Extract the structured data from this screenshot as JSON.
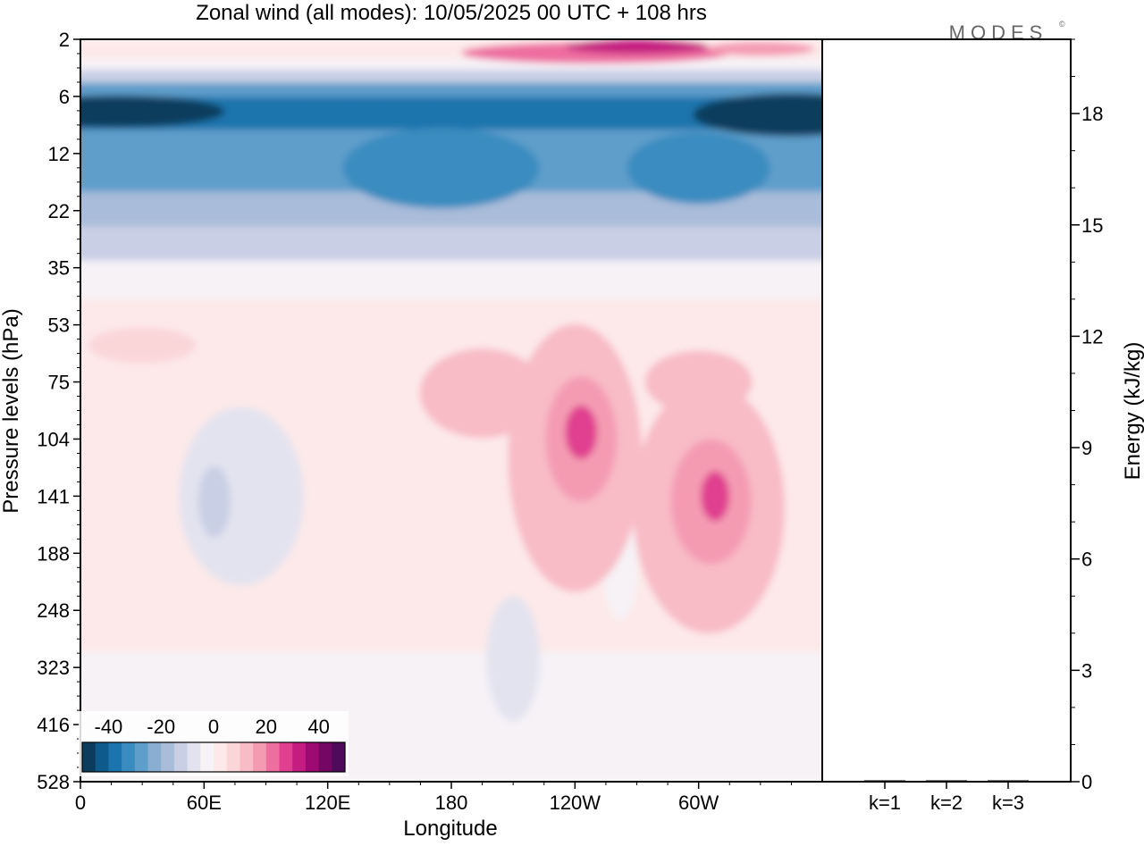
{
  "title": "Zonal wind (all modes):  10/05/2025  00 UTC  + 108 hrs",
  "brand": {
    "name": "MODES",
    "mark": "©"
  },
  "chart_data": [
    {
      "type": "heatmap",
      "title": "Zonal wind (all modes):  10/05/2025  00 UTC  + 108 hrs",
      "xlabel": "Longitude",
      "ylabel": "Pressure levels (hPa)",
      "x_tick_labels": [
        "0",
        "60E",
        "120E",
        "180",
        "120W",
        "60W"
      ],
      "x_tick_values_deg_east": [
        0,
        60,
        120,
        180,
        240,
        300
      ],
      "xlim": [
        0,
        360
      ],
      "y_tick_labels": [
        "2",
        "6",
        "12",
        "22",
        "35",
        "53",
        "75",
        "104",
        "141",
        "188",
        "248",
        "323",
        "416",
        "528"
      ],
      "y_levels_hPa": [
        2,
        6,
        12,
        22,
        35,
        53,
        75,
        104,
        141,
        188,
        248,
        323,
        416,
        528
      ],
      "colorbar": {
        "tick_labels": [
          "-40",
          "-20",
          "0",
          "20",
          "40"
        ],
        "range": [
          -50,
          50
        ],
        "colors": [
          "#0b3c5d",
          "#0e5a8a",
          "#1b74ad",
          "#3a8cc0",
          "#5e9ecb",
          "#88aed2",
          "#a9bcd9",
          "#c9cfe4",
          "#e3e3ef",
          "#f6f2f6",
          "#fde9e9",
          "#fbd6d9",
          "#f8bcc6",
          "#f49bb2",
          "#ee6ea0",
          "#e0408f",
          "#c41c80",
          "#9c0a72",
          "#740664",
          "#4f0a5c"
        ]
      },
      "field_description_ms": [
        {
          "name": "stratospheric easterly jet",
          "p_top": 5,
          "p_bottom": 22,
          "value_min": -50,
          "value_max": -20
        },
        {
          "name": "upper stratosphere westerlies",
          "p_top": 2,
          "p_bottom": 4,
          "lon_range": [
            180,
            330
          ],
          "value_max": 25
        },
        {
          "name": "jet core near 115W",
          "lon": 245,
          "p": 104,
          "value_max": 30
        },
        {
          "name": "jet core near 50W",
          "lon": 306,
          "p": 141,
          "value_max": 28
        },
        {
          "name": "easterly pocket near 75E",
          "lon": 75,
          "p": 141,
          "value_min": -10
        }
      ]
    },
    {
      "type": "bar",
      "categories": [
        "k=1",
        "k=2",
        "k=3"
      ],
      "values": [
        0.02,
        0.01,
        0.01
      ],
      "ylabel": "Energy (kJ/kg)",
      "ylim": [
        0,
        20
      ],
      "y_tick_labels": [
        "0",
        "3",
        "6",
        "9",
        "12",
        "15",
        "18"
      ],
      "y_tick_values": [
        0,
        3,
        6,
        9,
        12,
        15,
        18
      ]
    }
  ]
}
